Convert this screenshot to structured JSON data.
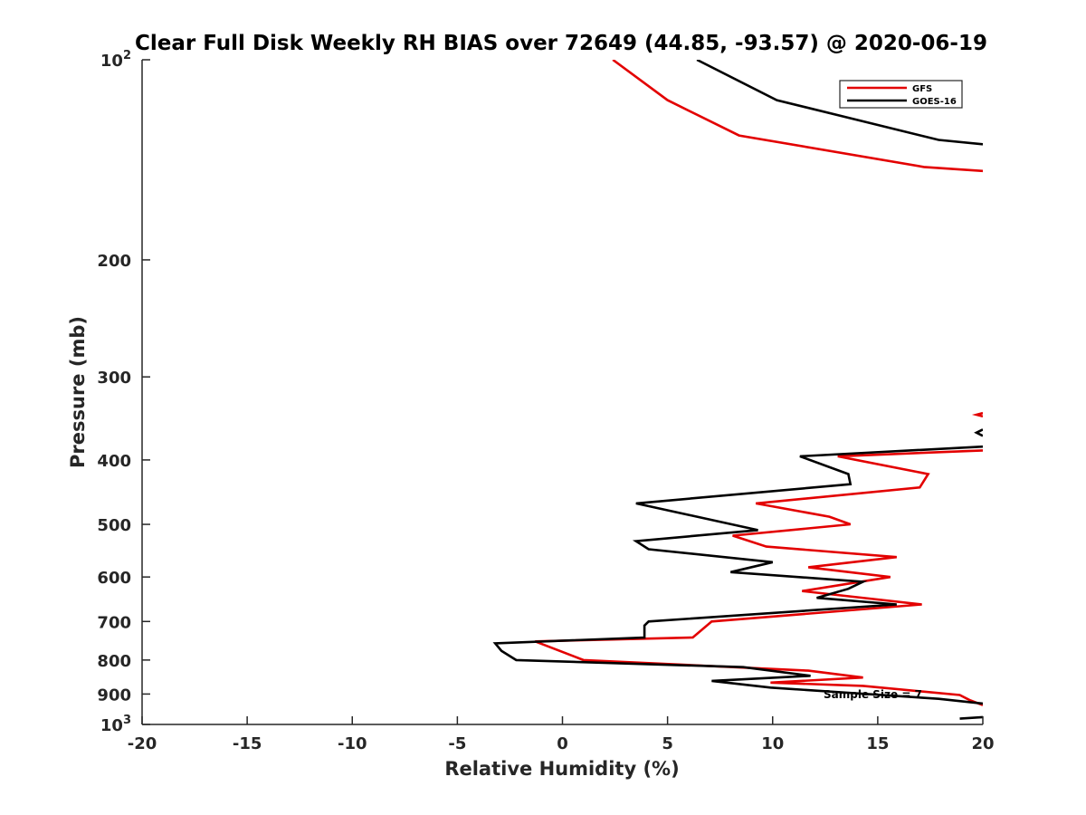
{
  "chart_data": {
    "type": "line",
    "title": "Clear Full Disk Weekly RH BIAS over 72649 (44.85, -93.57) @ 2020-06-19",
    "xlabel": "Relative Humidity (%)",
    "ylabel": "Pressure (mb)",
    "xlim": [
      -20,
      20
    ],
    "ylim": [
      100,
      1000
    ],
    "y_scale": "log",
    "y_reversed": true,
    "x_ticks": [
      "-20",
      "-15",
      "-10",
      "-5",
      "0",
      "5",
      "10",
      "15",
      "20"
    ],
    "y_ticks": [
      {
        "value": 100,
        "base": "10",
        "exp": "2"
      },
      {
        "value": 200,
        "label": "200"
      },
      {
        "value": 300,
        "label": "300"
      },
      {
        "value": 400,
        "label": "400"
      },
      {
        "value": 500,
        "label": "500"
      },
      {
        "value": 600,
        "label": "600"
      },
      {
        "value": 700,
        "label": "700"
      },
      {
        "value": 800,
        "label": "800"
      },
      {
        "value": 900,
        "label": "900"
      },
      {
        "value": 1000,
        "base": "10",
        "exp": "3"
      }
    ],
    "legend_position": "top-right",
    "grid": false,
    "annotation": "Sample Size = 7",
    "series": [
      {
        "name": "GFS",
        "color": "#e30000",
        "segments": [
          [
            [
              2.4,
              100
            ],
            [
              5.0,
              115
            ],
            [
              8.4,
              130
            ],
            [
              17.2,
              145
            ],
            [
              20.0,
              147
            ]
          ],
          [
            [
              20.0,
              340
            ],
            [
              19.7,
              342
            ],
            [
              20.0,
              344
            ]
          ],
          [
            [
              20.0,
              387
            ],
            [
              13.1,
              395
            ],
            [
              17.4,
              420
            ],
            [
              17.0,
              440
            ],
            [
              9.2,
              465
            ],
            [
              12.7,
              487
            ],
            [
              13.7,
              500
            ],
            [
              8.1,
              520
            ],
            [
              9.7,
              540
            ],
            [
              15.9,
              560
            ],
            [
              11.7,
              580
            ],
            [
              15.6,
              600
            ],
            [
              11.4,
              630
            ],
            [
              17.1,
              660
            ],
            [
              7.1,
              700
            ],
            [
              6.2,
              740
            ],
            [
              -1.3,
              750
            ],
            [
              1.0,
              800
            ],
            [
              11.7,
              830
            ],
            [
              14.3,
              850
            ],
            [
              9.9,
              865
            ],
            [
              14.3,
              875
            ],
            [
              18.9,
              903
            ],
            [
              19.4,
              920
            ],
            [
              20.0,
              935
            ]
          ]
        ]
      },
      {
        "name": "GOES-16",
        "color": "#000000",
        "segments": [
          [
            [
              6.4,
              100
            ],
            [
              10.2,
              115
            ],
            [
              17.9,
              132
            ],
            [
              20.0,
              134
            ]
          ],
          [
            [
              20.0,
              360
            ],
            [
              19.7,
              364
            ],
            [
              20.0,
              368
            ]
          ],
          [
            [
              20.0,
              382
            ],
            [
              11.3,
              395
            ],
            [
              13.6,
              420
            ],
            [
              13.7,
              435
            ],
            [
              3.5,
              465
            ],
            [
              6.8,
              490
            ],
            [
              9.3,
              510
            ],
            [
              3.5,
              530
            ],
            [
              4.1,
              545
            ],
            [
              10.0,
              570
            ],
            [
              8.0,
              590
            ],
            [
              14.3,
              610
            ],
            [
              13.6,
              625
            ],
            [
              12.1,
              645
            ],
            [
              15.9,
              660
            ],
            [
              4.1,
              700
            ],
            [
              3.9,
              710
            ],
            [
              3.9,
              740
            ],
            [
              -3.2,
              755
            ],
            [
              -2.9,
              775
            ],
            [
              -2.2,
              800
            ],
            [
              8.6,
              820
            ],
            [
              11.8,
              845
            ],
            [
              7.1,
              860
            ],
            [
              9.9,
              880
            ],
            [
              17.9,
              915
            ],
            [
              20.0,
              930
            ]
          ],
          [
            [
              18.9,
              980
            ],
            [
              20.0,
              975
            ]
          ]
        ]
      }
    ]
  }
}
